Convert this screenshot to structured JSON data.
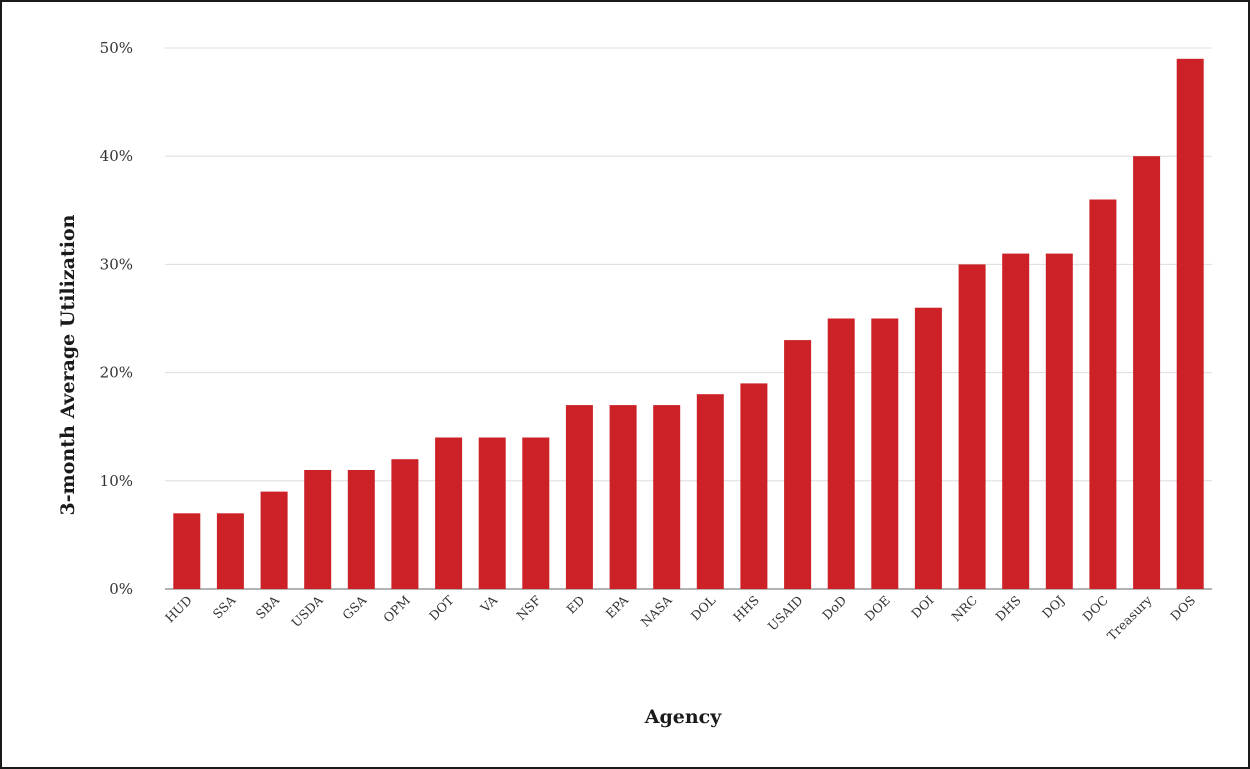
{
  "chart_data": {
    "type": "bar",
    "title": "",
    "xlabel": "Agency",
    "ylabel": "3-month Average Utilization",
    "ylim": [
      0,
      50
    ],
    "yticks": [
      0,
      10,
      20,
      30,
      40,
      50
    ],
    "ytick_labels": [
      "0%",
      "10%",
      "20%",
      "30%",
      "40%",
      "50%"
    ],
    "grid": true,
    "legend": "none",
    "bar_color": "#cc2127",
    "categories": [
      "HUD",
      "SSA",
      "SBA",
      "USDA",
      "GSA",
      "OPM",
      "DOT",
      "VA",
      "NSF",
      "ED",
      "EPA",
      "NASA",
      "DOL",
      "HHS",
      "USAID",
      "DoD",
      "DOE",
      "DOI",
      "NRC",
      "DHS",
      "DOJ",
      "DOC",
      "Treasury",
      "DOS"
    ],
    "values": [
      7,
      7,
      9,
      11,
      11,
      12,
      14,
      14,
      14,
      17,
      17,
      17,
      18,
      19,
      23,
      25,
      25,
      26,
      30,
      31,
      31,
      36,
      40,
      49
    ]
  }
}
